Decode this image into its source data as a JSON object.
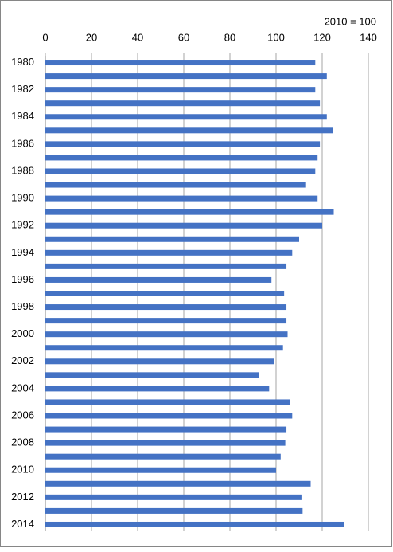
{
  "chart_data": {
    "type": "bar",
    "orientation": "horizontal",
    "annotation": "2010 = 100",
    "categories": [
      "1980",
      null,
      "1982",
      null,
      "1984",
      null,
      "1986",
      null,
      "1988",
      null,
      "1990",
      null,
      "1992",
      null,
      "1994",
      null,
      "1996",
      null,
      "1998",
      null,
      "2000",
      null,
      "2002",
      null,
      "2004",
      null,
      "2006",
      null,
      "2008",
      null,
      "2010",
      null,
      "2012",
      null,
      "2014"
    ],
    "values": [
      117,
      122,
      117,
      119,
      122,
      124.5,
      119,
      118,
      117,
      113,
      118,
      125,
      120,
      110,
      107,
      104.5,
      98,
      103.5,
      104.5,
      104.5,
      105,
      103,
      99,
      92.5,
      97,
      106,
      107,
      104.5,
      104,
      102,
      100,
      115,
      111,
      111.5,
      129.5
    ],
    "color": "#4472c4",
    "xlim": [
      0,
      140
    ],
    "xticks": [
      0,
      20,
      40,
      60,
      80,
      100,
      120,
      140
    ],
    "grid": true
  }
}
